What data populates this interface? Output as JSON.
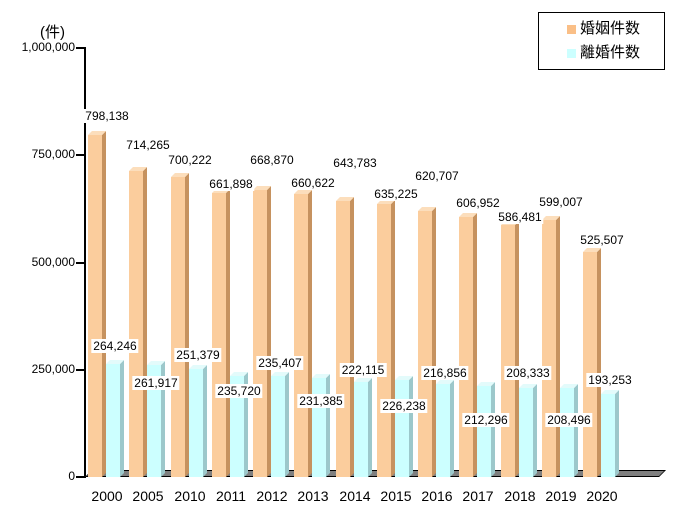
{
  "chart_data": {
    "type": "bar",
    "title": "",
    "ylabel": "(件)",
    "xlabel": "",
    "categories": [
      "2000",
      "2005",
      "2010",
      "2011",
      "2012",
      "2013",
      "2014",
      "2015",
      "2016",
      "2017",
      "2018",
      "2019",
      "2020"
    ],
    "series": [
      {
        "key": "marriage",
        "name": "婚姻件数",
        "values": [
          798138,
          714265,
          700222,
          661898,
          668870,
          660622,
          643783,
          635225,
          620707,
          606952,
          586481,
          599007,
          525507
        ],
        "color": "#FBCD9D",
        "side_color": "#C6925F",
        "top_color": "#FCDEBC",
        "legend_color": "#FABF87",
        "label_dx": 0,
        "label_dy": [
          -26,
          -33,
          -24,
          -16,
          -37,
          -18,
          -45,
          -17,
          -42,
          -21,
          -15,
          -25,
          -19
        ]
      },
      {
        "key": "divorce",
        "name": "離婚件数",
        "values": [
          264246,
          261917,
          251379,
          235720,
          235407,
          231385,
          222115,
          226238,
          216856,
          212296,
          208333,
          208496,
          193253
        ],
        "color": "#CCFFFF",
        "side_color": "#9CC8CB",
        "top_color": "#E3FBFB",
        "legend_color": "#CCFFFF",
        "label_dx": 8,
        "label_dy": [
          -25,
          11,
          -21,
          8,
          -20,
          16,
          -19,
          19,
          -18,
          27,
          -22,
          25,
          -21
        ]
      }
    ],
    "ylim": [
      0,
      1000000
    ],
    "yticks": [
      0,
      250000,
      500000,
      750000,
      1000000
    ],
    "ytick_labels": [
      "0",
      "250,000",
      "500,000",
      "750,000",
      "1,000,000"
    ],
    "grid": false,
    "legend_position": "top-right",
    "value_labels_shown": true,
    "floor_color": "#7F7F7F",
    "axis_color": "#000000"
  }
}
